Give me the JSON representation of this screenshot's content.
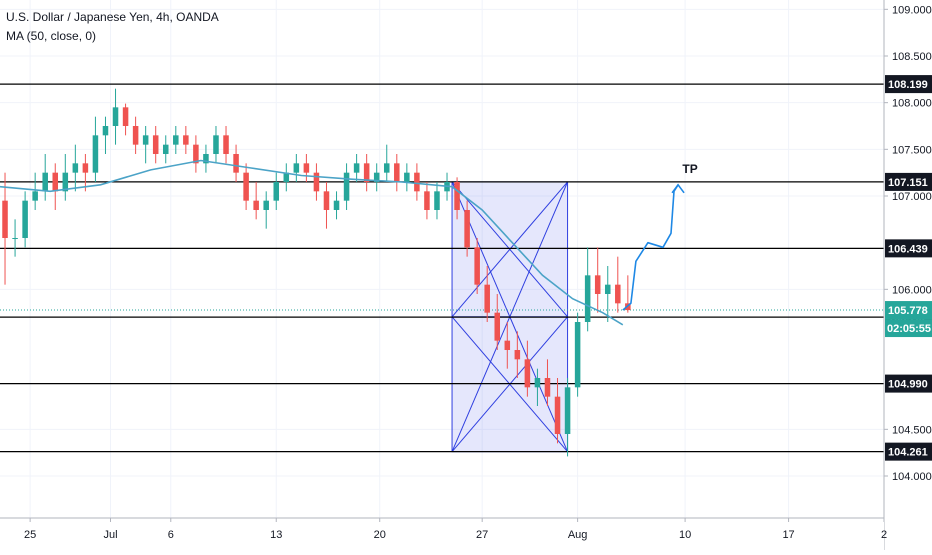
{
  "chart_data": {
    "type": "candlestick",
    "title": "U.S. Dollar / Japanese Yen, 4h, OANDA",
    "indicator": "MA (50, close, 0)",
    "ylim": [
      103.55,
      109.1
    ],
    "xlim": [
      0,
      88
    ],
    "y_ticks": [
      "104.000",
      "104.500",
      "106.000",
      "107.000",
      "107.500",
      "108.000",
      "108.500",
      "109.000"
    ],
    "x_ticks": [
      {
        "label": "25",
        "x": 3
      },
      {
        "label": "Jul",
        "x": 11
      },
      {
        "label": "6",
        "x": 17
      },
      {
        "label": "13",
        "x": 27.5
      },
      {
        "label": "20",
        "x": 37.8
      },
      {
        "label": "27",
        "x": 48
      },
      {
        "label": "Aug",
        "x": 57.5
      },
      {
        "label": "10",
        "x": 68.2
      },
      {
        "label": "17",
        "x": 78.5
      },
      {
        "label": "2",
        "x": 88
      }
    ],
    "levels": [
      {
        "label": "108.199",
        "value": 108.199,
        "bg": "#131722"
      },
      {
        "label": "107.151",
        "value": 107.151,
        "bg": "#131722"
      },
      {
        "label": "106.439",
        "value": 106.439,
        "bg": "#131722"
      },
      {
        "label": "105.702",
        "value": 105.702,
        "bg": "#131722"
      },
      {
        "label": "104.990",
        "value": 104.99,
        "bg": "#131722"
      },
      {
        "label": "104.261",
        "value": 104.261,
        "bg": "#131722"
      }
    ],
    "current_price": {
      "label": "105.778",
      "value": 105.778,
      "bg": "#26a69a"
    },
    "countdown": {
      "label": "02:05:55",
      "bg": "#26a69a"
    },
    "annotation": {
      "label": "TP"
    },
    "box": {
      "x_start": 45,
      "x_end": 56.5,
      "y_top": 107.151,
      "y_bottom": 104.261
    },
    "candles": [
      [
        106.95,
        107.25,
        106.05,
        106.55
      ],
      [
        106.55,
        106.75,
        106.35,
        106.55
      ],
      [
        106.55,
        107.05,
        106.45,
        106.95
      ],
      [
        106.95,
        107.25,
        106.85,
        107.05
      ],
      [
        107.05,
        107.45,
        106.95,
        107.25
      ],
      [
        107.25,
        107.35,
        106.85,
        107.05
      ],
      [
        107.05,
        107.45,
        106.95,
        107.25
      ],
      [
        107.25,
        107.55,
        107.05,
        107.35
      ],
      [
        107.35,
        107.45,
        107.05,
        107.25
      ],
      [
        107.25,
        107.85,
        107.15,
        107.65
      ],
      [
        107.65,
        107.85,
        107.45,
        107.75
      ],
      [
        107.75,
        108.15,
        107.55,
        107.95
      ],
      [
        107.95,
        107.99,
        107.65,
        107.75
      ],
      [
        107.75,
        107.85,
        107.45,
        107.55
      ],
      [
        107.55,
        107.75,
        107.35,
        107.65
      ],
      [
        107.65,
        107.75,
        107.35,
        107.45
      ],
      [
        107.45,
        107.65,
        107.35,
        107.55
      ],
      [
        107.55,
        107.75,
        107.45,
        107.65
      ],
      [
        107.65,
        107.75,
        107.45,
        107.55
      ],
      [
        107.55,
        107.65,
        107.25,
        107.35
      ],
      [
        107.35,
        107.55,
        107.25,
        107.45
      ],
      [
        107.45,
        107.75,
        107.35,
        107.65
      ],
      [
        107.65,
        107.75,
        107.35,
        107.45
      ],
      [
        107.45,
        107.55,
        107.15,
        107.25
      ],
      [
        107.25,
        107.35,
        106.85,
        106.95
      ],
      [
        106.95,
        107.15,
        106.75,
        106.85
      ],
      [
        106.85,
        107.05,
        106.65,
        106.95
      ],
      [
        106.95,
        107.25,
        106.85,
        107.15
      ],
      [
        107.15,
        107.35,
        107.05,
        107.25
      ],
      [
        107.25,
        107.45,
        107.15,
        107.35
      ],
      [
        107.35,
        107.45,
        107.15,
        107.25
      ],
      [
        107.25,
        107.35,
        106.95,
        107.05
      ],
      [
        107.05,
        107.15,
        106.65,
        106.85
      ],
      [
        106.85,
        107.05,
        106.75,
        106.95
      ],
      [
        106.95,
        107.35,
        106.85,
        107.25
      ],
      [
        107.25,
        107.45,
        107.15,
        107.35
      ],
      [
        107.35,
        107.45,
        107.05,
        107.15
      ],
      [
        107.15,
        107.35,
        107.05,
        107.25
      ],
      [
        107.25,
        107.55,
        107.15,
        107.35
      ],
      [
        107.35,
        107.45,
        107.05,
        107.15
      ],
      [
        107.15,
        107.35,
        107.05,
        107.25
      ],
      [
        107.25,
        107.35,
        106.95,
        107.05
      ],
      [
        107.05,
        107.15,
        106.75,
        106.85
      ],
      [
        106.85,
        107.15,
        106.75,
        107.05
      ],
      [
        107.05,
        107.25,
        106.95,
        107.15
      ],
      [
        107.15,
        107.2,
        106.75,
        106.85
      ],
      [
        106.85,
        106.95,
        106.35,
        106.45
      ],
      [
        106.45,
        106.55,
        105.95,
        106.05
      ],
      [
        106.05,
        106.25,
        105.65,
        105.75
      ],
      [
        105.75,
        105.95,
        105.35,
        105.45
      ],
      [
        105.45,
        105.65,
        105.15,
        105.35
      ],
      [
        105.35,
        105.55,
        105.05,
        105.25
      ],
      [
        105.25,
        105.45,
        104.85,
        104.95
      ],
      [
        104.95,
        105.15,
        104.75,
        105.05
      ],
      [
        105.05,
        105.25,
        104.75,
        104.85
      ],
      [
        104.85,
        105.05,
        104.35,
        104.45
      ],
      [
        104.45,
        105.05,
        104.21,
        104.95
      ],
      [
        104.95,
        105.75,
        104.85,
        105.65
      ],
      [
        105.65,
        106.45,
        105.55,
        106.15
      ],
      [
        106.15,
        106.45,
        105.75,
        105.95
      ],
      [
        105.95,
        106.25,
        105.65,
        106.05
      ],
      [
        106.05,
        106.35,
        105.75,
        105.85
      ],
      [
        105.85,
        106.15,
        105.75,
        105.778
      ]
    ],
    "ma": [
      [
        0,
        107.1
      ],
      [
        5,
        107.05
      ],
      [
        10,
        107.12
      ],
      [
        15,
        107.28
      ],
      [
        20,
        107.38
      ],
      [
        25,
        107.3
      ],
      [
        30,
        107.22
      ],
      [
        35,
        107.18
      ],
      [
        40,
        107.15
      ],
      [
        45,
        107.1
      ],
      [
        48,
        106.85
      ],
      [
        51,
        106.5
      ],
      [
        54,
        106.15
      ],
      [
        57,
        105.9
      ],
      [
        60,
        105.75
      ],
      [
        62,
        105.62
      ]
    ],
    "projection": [
      [
        62,
        105.778
      ],
      [
        62.8,
        105.85
      ],
      [
        63.3,
        106.3
      ],
      [
        64.5,
        106.5
      ],
      [
        66,
        106.45
      ],
      [
        66.8,
        106.6
      ],
      [
        67.1,
        107.05
      ],
      [
        67.5,
        107.12
      ]
    ]
  }
}
